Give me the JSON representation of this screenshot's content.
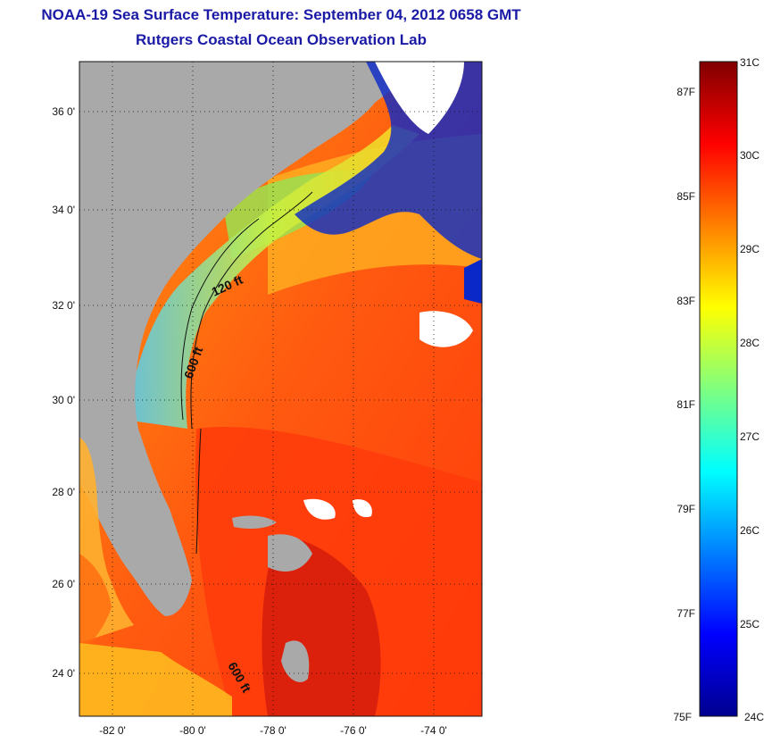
{
  "header": {
    "title": "NOAA-19 Sea Surface Temperature:  September 04, 2012 0658 GMT",
    "subtitle": "Rutgers Coastal Ocean Observation Lab"
  },
  "map": {
    "latitude_labels": [
      "36 0'",
      "34 0'",
      "32 0'",
      "30 0'",
      "28 0'",
      "26 0'",
      "24 0'"
    ],
    "longitude_labels": [
      "-82 0'",
      "-80 0'",
      "-78 0'",
      "-76 0'",
      "-74 0'"
    ],
    "contour_labels": [
      "120 ft",
      "600 ft",
      "600 ft"
    ],
    "lat_range": [
      23,
      37.2
    ],
    "lon_range": [
      -83,
      -73
    ]
  },
  "colorbar": {
    "celsius_labels": [
      "31C",
      "30C",
      "29C",
      "28C",
      "27C",
      "26C",
      "25C",
      "24C"
    ],
    "fahrenheit_labels": [
      "87F",
      "85F",
      "83F",
      "81F",
      "79F",
      "77F",
      "75F"
    ],
    "range_c": [
      24,
      31
    ],
    "colormap": "jet"
  },
  "colors": {
    "title": "#1a1aa6",
    "land": "#a9a9a9",
    "cloud": "#ffffff"
  }
}
